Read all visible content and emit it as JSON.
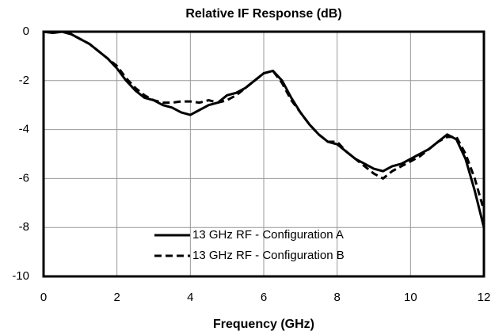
{
  "chart_data": {
    "type": "line",
    "title": "Relative IF Response (dB)",
    "x_label": "Frequency (GHz)",
    "x": [
      0,
      0.25,
      0.5,
      0.75,
      1,
      1.25,
      1.5,
      1.75,
      2,
      2.25,
      2.5,
      2.75,
      3,
      3.25,
      3.5,
      3.75,
      4,
      4.25,
      4.5,
      4.75,
      5,
      5.25,
      5.5,
      5.75,
      6,
      6.25,
      6.5,
      6.75,
      7,
      7.25,
      7.5,
      7.75,
      8,
      8.25,
      8.5,
      8.75,
      9,
      9.25,
      9.5,
      9.75,
      10,
      10.25,
      10.5,
      10.75,
      11,
      11.25,
      11.5,
      11.75,
      12
    ],
    "series": [
      {
        "name": "13 GHz RF - Configuration A",
        "color": "#000000",
        "line_style": "solid",
        "values": [
          0,
          -0.05,
          0,
          -0.1,
          -0.3,
          -0.5,
          -0.8,
          -1.1,
          -1.5,
          -2.0,
          -2.4,
          -2.7,
          -2.8,
          -3.0,
          -3.1,
          -3.3,
          -3.4,
          -3.2,
          -3.0,
          -2.9,
          -2.6,
          -2.5,
          -2.3,
          -2.0,
          -1.7,
          -1.6,
          -2.0,
          -2.7,
          -3.3,
          -3.8,
          -4.2,
          -4.5,
          -4.6,
          -4.9,
          -5.2,
          -5.4,
          -5.6,
          -5.7,
          -5.5,
          -5.4,
          -5.2,
          -5.0,
          -4.8,
          -4.5,
          -4.2,
          -4.4,
          -5.2,
          -6.5,
          -8.0
        ]
      },
      {
        "name": "13 GHz RF - Configuration B",
        "color": "#000000",
        "line_style": "dashed",
        "values": [
          0,
          -0.05,
          0,
          -0.1,
          -0.3,
          -0.5,
          -0.8,
          -1.1,
          -1.4,
          -1.9,
          -2.3,
          -2.6,
          -2.8,
          -2.9,
          -2.9,
          -2.85,
          -2.85,
          -2.9,
          -2.8,
          -2.9,
          -2.8,
          -2.6,
          -2.3,
          -2.0,
          -1.7,
          -1.6,
          -2.1,
          -2.8,
          -3.3,
          -3.8,
          -4.2,
          -4.5,
          -4.5,
          -4.9,
          -5.2,
          -5.5,
          -5.8,
          -6.0,
          -5.7,
          -5.5,
          -5.3,
          -5.1,
          -4.8,
          -4.5,
          -4.3,
          -4.3,
          -5.0,
          -6.0,
          -7.3
        ]
      }
    ],
    "xlim": [
      0,
      12
    ],
    "xticks": [
      0,
      2,
      4,
      6,
      8,
      10,
      12
    ],
    "ylim": [
      -10,
      0
    ],
    "yticks": [
      0,
      -2,
      -4,
      -6,
      -8,
      -10
    ],
    "grid": true,
    "legend": "lower center"
  }
}
